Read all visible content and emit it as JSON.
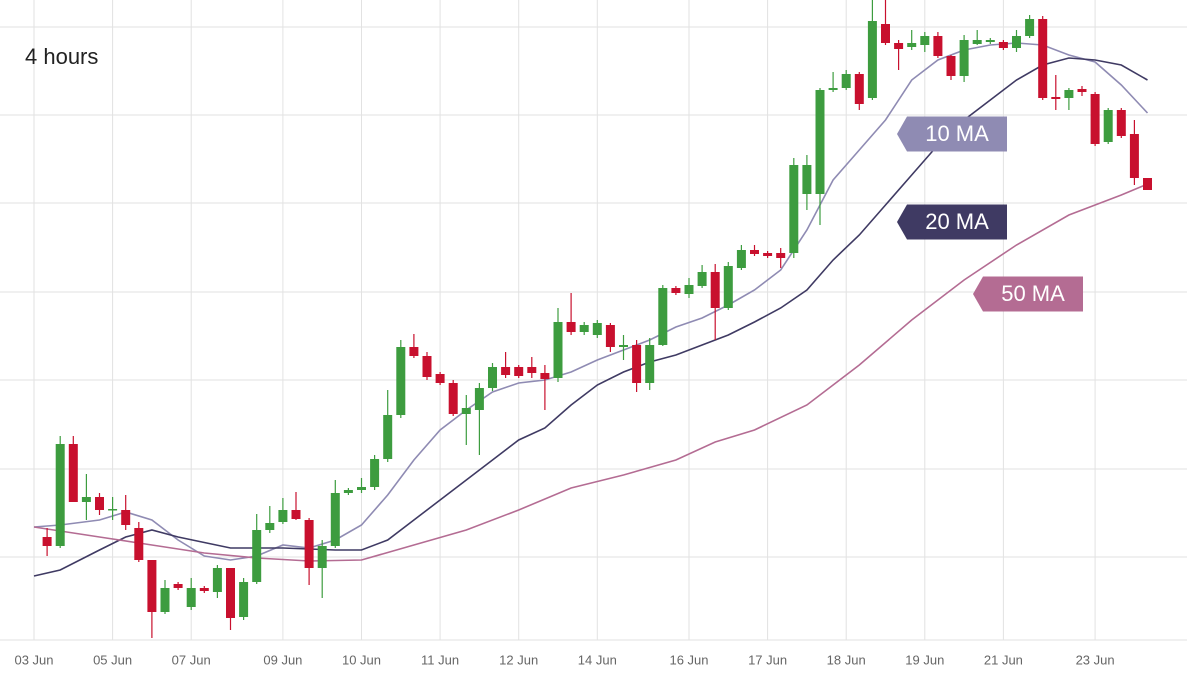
{
  "chart_data": {
    "type": "candlestick",
    "title": "4 hours",
    "categories": [
      "03 Jun",
      null,
      null,
      null,
      null,
      null,
      "05 Jun",
      null,
      null,
      null,
      null,
      null,
      "07 Jun",
      null,
      null,
      null,
      null,
      null,
      null,
      "09 Jun",
      null,
      null,
      null,
      null,
      null,
      "10 Jun",
      null,
      null,
      null,
      null,
      null,
      "11 Jun",
      null,
      null,
      null,
      null,
      null,
      "12 Jun",
      null,
      null,
      null,
      null,
      null,
      "14 Jun",
      null,
      null,
      null,
      null,
      null,
      null,
      "16 Jun",
      null,
      null,
      null,
      null,
      null,
      "17 Jun",
      null,
      null,
      null,
      null,
      null,
      "18 Jun",
      null,
      null,
      null,
      null,
      null,
      "19 Jun",
      null,
      null,
      null,
      null,
      null,
      "21 Jun",
      null,
      null,
      null,
      null,
      null,
      null,
      "23 Jun",
      null,
      null,
      null,
      null
    ],
    "open": [
      null,
      103,
      94,
      196,
      138,
      143,
      130,
      130,
      112,
      80,
      28,
      56,
      33,
      52,
      48,
      72,
      23,
      58,
      110,
      118,
      130,
      120,
      72,
      94,
      147,
      150,
      153,
      181,
      225,
      293,
      284,
      266,
      257,
      226,
      230,
      252,
      273,
      273,
      273,
      267,
      262,
      318,
      308,
      305,
      315,
      293,
      295,
      257,
      295,
      352,
      346,
      354,
      368,
      332,
      372,
      390,
      387,
      387,
      387,
      446,
      446,
      550,
      552,
      566,
      542,
      616,
      597,
      593,
      595,
      604,
      584,
      564,
      596,
      598,
      598,
      592,
      604,
      621,
      543,
      542,
      551,
      546,
      498,
      530,
      506,
      462
    ],
    "high": [
      null,
      112,
      204,
      204,
      166,
      147,
      143,
      145,
      118,
      80,
      60,
      58,
      62,
      54,
      75,
      72,
      62,
      126,
      134,
      142,
      148,
      122,
      100,
      160,
      152,
      162,
      185,
      250,
      300,
      306,
      288,
      268,
      260,
      245,
      257,
      277,
      288,
      275,
      283,
      275,
      332,
      347,
      318,
      320,
      317,
      305,
      300,
      302,
      355,
      354,
      362,
      375,
      376,
      378,
      395,
      395,
      389,
      392,
      482,
      485,
      552,
      568,
      570,
      568,
      640,
      640,
      600,
      610,
      608,
      608,
      585,
      605,
      610,
      602,
      600,
      610,
      625,
      624,
      565,
      552,
      554,
      548,
      532,
      532,
      520,
      462
    ],
    "low": [
      null,
      84,
      92,
      138,
      120,
      125,
      120,
      110,
      78,
      2,
      26,
      50,
      30,
      47,
      42,
      10,
      20,
      56,
      107,
      116,
      120,
      55,
      42,
      92,
      145,
      147,
      150,
      178,
      222,
      282,
      260,
      255,
      224,
      195,
      185,
      249,
      262,
      262,
      262,
      230,
      258,
      305,
      305,
      302,
      288,
      280,
      248,
      250,
      294,
      345,
      342,
      352,
      300,
      330,
      370,
      384,
      382,
      372,
      382,
      430,
      415,
      548,
      550,
      530,
      540,
      595,
      570,
      590,
      588,
      582,
      560,
      558,
      595,
      596,
      590,
      588,
      602,
      540,
      530,
      530,
      544,
      494,
      496,
      502,
      455,
      450
    ],
    "close": [
      null,
      94,
      196,
      138,
      143,
      130,
      131,
      115,
      80,
      28,
      52,
      52,
      52,
      49,
      72,
      22,
      58,
      110,
      117,
      130,
      121,
      72,
      94,
      147,
      150,
      153,
      181,
      225,
      293,
      284,
      263,
      257,
      226,
      232,
      252,
      273,
      265,
      264,
      267,
      261,
      318,
      308,
      315,
      317,
      293,
      295,
      257,
      295,
      352,
      347,
      355,
      368,
      332,
      374,
      390,
      386,
      384,
      382,
      475,
      475,
      550,
      552,
      566,
      536,
      619,
      597,
      591,
      597,
      604,
      584,
      564,
      600,
      600,
      600,
      592,
      604,
      621,
      542,
      541,
      550,
      548,
      496,
      530,
      504,
      462,
      450
    ],
    "up_color": "#3d9c3f",
    "down_color": "#c8102e",
    "lines": [
      {
        "name": "10 MA",
        "color": "#8f8bb3",
        "x": [
          0,
          2,
          5,
          7,
          9,
          11,
          13,
          15,
          17,
          19,
          21,
          23,
          25,
          27,
          29,
          31,
          33,
          35,
          37,
          39,
          41,
          43,
          45,
          47,
          49,
          51,
          53,
          55,
          57,
          59,
          61,
          63,
          65,
          67,
          69,
          71,
          73,
          75,
          77,
          79,
          81,
          83,
          85
        ],
        "values": [
          113,
          115,
          120,
          128,
          120,
          100,
          84,
          80,
          84,
          95,
          92,
          100,
          115,
          145,
          180,
          210,
          230,
          248,
          257,
          260,
          268,
          280,
          290,
          300,
          313,
          322,
          335,
          350,
          370,
          410,
          460,
          490,
          520,
          560,
          580,
          590,
          595,
          597,
          595,
          585,
          578,
          555,
          527
        ]
      },
      {
        "name": "20 MA",
        "color": "#3f3a63",
        "x": [
          0,
          2,
          5,
          7,
          9,
          11,
          15,
          19,
          23,
          25,
          27,
          29,
          31,
          33,
          35,
          37,
          39,
          41,
          43,
          45,
          47,
          49,
          51,
          53,
          55,
          57,
          59,
          61,
          63,
          65,
          67,
          69,
          71,
          73,
          75,
          77,
          79,
          81,
          83,
          85
        ],
        "values": [
          64,
          70,
          90,
          103,
          110,
          103,
          92,
          92,
          90,
          90,
          100,
          120,
          140,
          160,
          180,
          200,
          212,
          235,
          255,
          268,
          278,
          285,
          295,
          305,
          318,
          332,
          350,
          380,
          405,
          435,
          465,
          495,
          520,
          540,
          560,
          575,
          582,
          580,
          575,
          560
        ]
      },
      {
        "name": "50 MA",
        "color": "#b46c93",
        "x": [
          0,
          5,
          9,
          13,
          17,
          21,
          25,
          29,
          33,
          37,
          41,
          45,
          49,
          52,
          55,
          59,
          63,
          67,
          71,
          75,
          79,
          81,
          83,
          85
        ],
        "values": [
          113,
          103,
          95,
          87,
          82,
          79,
          80,
          95,
          110,
          130,
          152,
          165,
          180,
          198,
          210,
          235,
          275,
          320,
          360,
          395,
          425,
          435,
          445,
          456
        ]
      }
    ],
    "ylim": [
      0,
      640
    ],
    "yticks": [
      0,
      83,
      171,
      260,
      348,
      437,
      525,
      613
    ],
    "grid": true
  }
}
